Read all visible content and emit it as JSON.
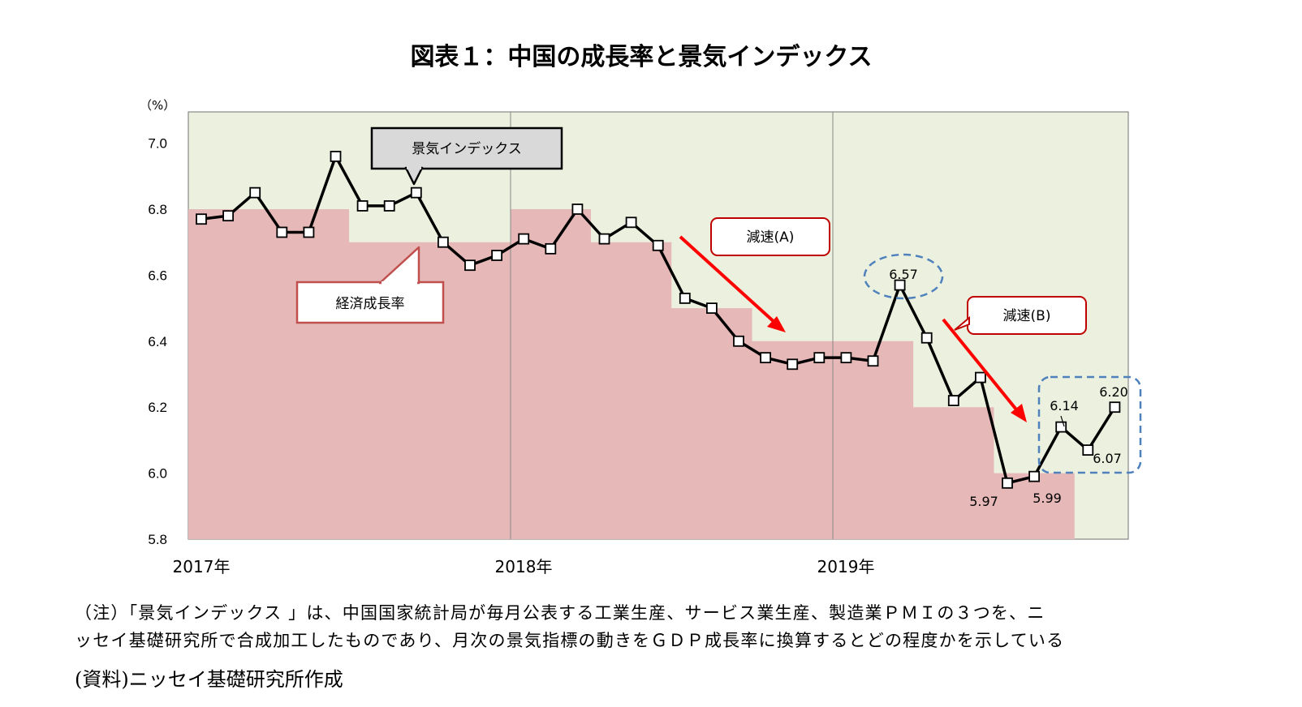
{
  "chart_data": {
    "type": "line",
    "title": "図表１：中国の成長率と景気インデックス",
    "y_unit": "（%）",
    "ylim": [
      5.8,
      7.0
    ],
    "yticks": [
      "5.8",
      "6.0",
      "6.2",
      "6.4",
      "6.6",
      "6.8",
      "7.0"
    ],
    "x_labels": [
      "2017年",
      "2018年",
      "2019年"
    ],
    "series": [
      {
        "name": "景気インデックス",
        "type": "line",
        "color": "#000000",
        "values": [
          6.77,
          6.78,
          6.85,
          6.73,
          6.73,
          6.96,
          6.81,
          6.81,
          6.85,
          6.7,
          6.63,
          6.66,
          6.71,
          6.68,
          6.8,
          6.71,
          6.76,
          6.69,
          6.53,
          6.5,
          6.4,
          6.35,
          6.33,
          6.35,
          6.35,
          6.34,
          6.57,
          6.41,
          6.22,
          6.29,
          5.97,
          5.99,
          6.14,
          6.07,
          6.2
        ]
      },
      {
        "name": "経済成長率",
        "type": "step-area",
        "color": "#e6b8b7",
        "values": [
          6.8,
          6.8,
          6.8,
          6.8,
          6.8,
          6.8,
          6.7,
          6.7,
          6.7,
          6.7,
          6.7,
          6.7,
          6.8,
          6.8,
          6.8,
          6.7,
          6.7,
          6.7,
          6.5,
          6.5,
          6.5,
          6.4,
          6.4,
          6.4,
          6.4,
          6.4,
          6.4,
          6.2,
          6.2,
          6.2,
          6.0,
          6.0,
          6.0
        ]
      }
    ],
    "data_labels": [
      {
        "index": 26,
        "text": "6.57"
      },
      {
        "index": 30,
        "text": "5.97"
      },
      {
        "index": 31,
        "text": "5.99"
      },
      {
        "index": 32,
        "text": "6.14"
      },
      {
        "index": 33,
        "text": "6.07"
      },
      {
        "index": 34,
        "text": "6.20"
      }
    ],
    "annotations": {
      "index_callout": "景気インデックス",
      "gdp_callout": "経済成長率",
      "decel_a": "減速(A)",
      "decel_b": "減速(B)"
    },
    "colors": {
      "plot_bg": "#ebf1de",
      "gdp_fill": "#e6b8b7",
      "line": "#000000",
      "arrow": "#ff0000",
      "callout_red": "#c0504d",
      "callout_gray": "#d9d9d9",
      "highlight": "#4f81bd"
    }
  },
  "notes": {
    "line1": "（注）「景気インデックス 」は、中国国家統計局が毎月公表する工業生産、サービス業生産、製造業ＰＭＩの３つを、ニ",
    "line2": "ッセイ基礎研究所で合成加工したものであり、月次の景気指標の動きをＧＤＰ成長率に換算するとどの程度かを示している",
    "source": "(資料)ニッセイ基礎研究所作成"
  }
}
